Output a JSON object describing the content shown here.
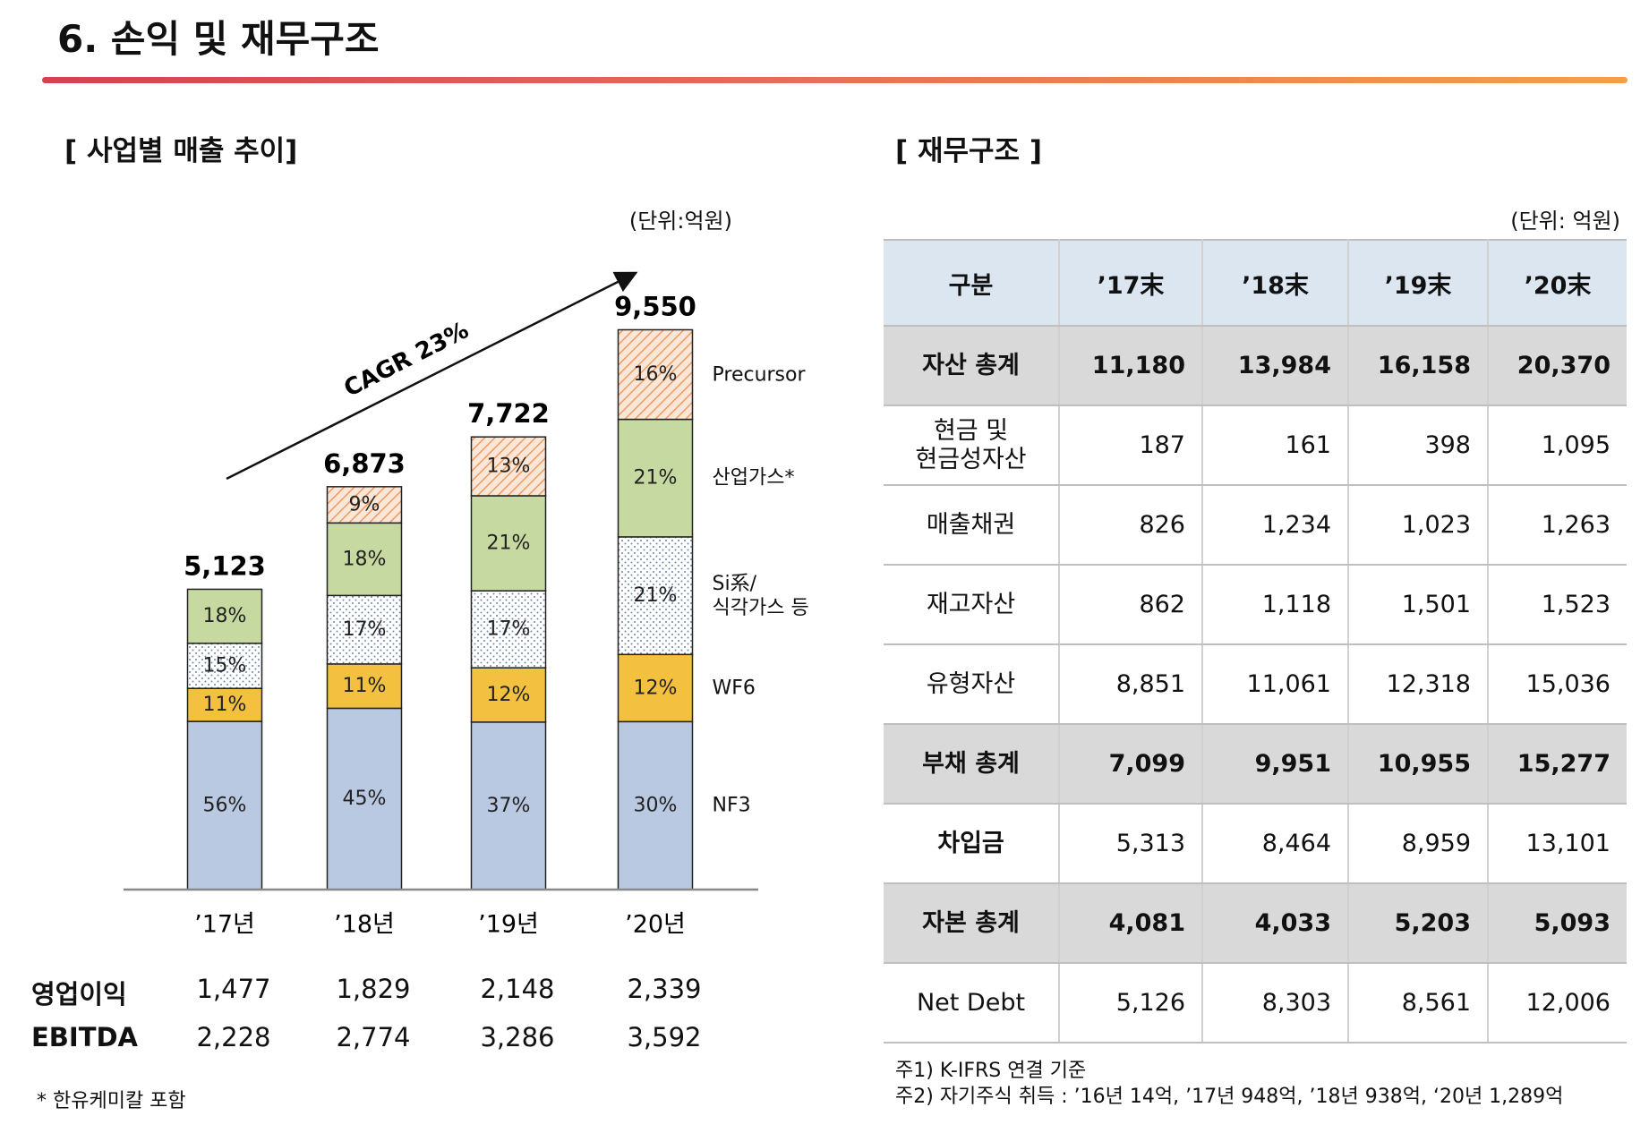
{
  "header": {
    "title": "6. 손익 및 재무구조"
  },
  "left": {
    "title": "[ 사업별 매출 추이]",
    "unit": "(단위:억원)",
    "chart_data": {
      "type": "stacked-bar",
      "categories": [
        "’17년",
        "’18년",
        "’19년",
        "’20년"
      ],
      "ylim": [
        0,
        10000
      ],
      "series": [
        {
          "name": "NF3",
          "color": "#b9c9e2",
          "values": [
            56,
            45,
            37,
            30
          ],
          "value_labels": [
            "56%",
            "45%",
            "37%",
            "30%"
          ]
        },
        {
          "name": "WF6",
          "color": "#f3c13f",
          "values": [
            11,
            11,
            12,
            12
          ],
          "value_labels": [
            "11%",
            "11%",
            "12%",
            "12%"
          ]
        },
        {
          "name": "Si系/\n식각가스 등",
          "color": "#6f86a8",
          "pattern": "dots",
          "values": [
            15,
            17,
            17,
            21
          ],
          "value_labels": [
            "15%",
            "17%",
            "17%",
            "21%"
          ]
        },
        {
          "name": "산업가스*",
          "color": "#c6d9a0",
          "values": [
            18,
            18,
            21,
            21
          ],
          "value_labels": [
            "18%",
            "18%",
            "21%",
            "21%"
          ]
        },
        {
          "name": "Precursor",
          "color": "#ee9a63",
          "pattern": "hatch",
          "values": [
            null,
            9,
            13,
            16
          ],
          "value_labels": [
            null,
            "9%",
            "13%",
            "16%"
          ]
        }
      ],
      "totals": {
        "values": [
          5123,
          6873,
          7722,
          9550
        ],
        "value_labels": [
          "5,123",
          "6,873",
          "7,722",
          "9,550"
        ]
      },
      "annotation": "CAGR 23%"
    },
    "metrics": [
      {
        "label": "영업이익",
        "values": [
          "1,477",
          "1,829",
          "2,148",
          "2,339"
        ]
      },
      {
        "label": "EBITDA",
        "values": [
          "2,228",
          "2,774",
          "3,286",
          "3,592"
        ]
      }
    ],
    "footnote": "* 한유케미칼 포함"
  },
  "right": {
    "title": "[ 재무구조 ]",
    "unit": "(단위: 억원)",
    "table": {
      "header": [
        "구분",
        "’17末",
        "’18末",
        "’19末",
        "’20末"
      ],
      "rows": [
        {
          "style": "total",
          "cells": [
            "자산 총계",
            "11,180",
            "13,984",
            "16,158",
            "20,370"
          ]
        },
        {
          "style": "plain",
          "cells": [
            "현금 및\n현금성자산",
            "187",
            "161",
            "398",
            "1,095"
          ]
        },
        {
          "style": "plain",
          "cells": [
            "매출채권",
            "826",
            "1,234",
            "1,023",
            "1,263"
          ]
        },
        {
          "style": "plain",
          "cells": [
            "재고자산",
            "862",
            "1,118",
            "1,501",
            "1,523"
          ]
        },
        {
          "style": "plain",
          "cells": [
            "유형자산",
            "8,851",
            "11,061",
            "12,318",
            "15,036"
          ]
        },
        {
          "style": "total",
          "cells": [
            "부채 총계",
            "7,099",
            "9,951",
            "10,955",
            "15,277"
          ]
        },
        {
          "style": "label-bold",
          "cells": [
            "차입금",
            "5,313",
            "8,464",
            "8,959",
            "13,101"
          ]
        },
        {
          "style": "total",
          "cells": [
            "자본 총계",
            "4,081",
            "4,033",
            "5,203",
            "5,093"
          ]
        },
        {
          "style": "plain",
          "cells": [
            "Net Debt",
            "5,126",
            "8,303",
            "8,561",
            "12,006"
          ]
        }
      ]
    },
    "notes": [
      "주1) K-IFRS 연결 기준",
      "주2) 자기주식 취득 : ’16년 14억, ’17년 948억, ’18년 938억, ‘20년 1,289억"
    ]
  }
}
